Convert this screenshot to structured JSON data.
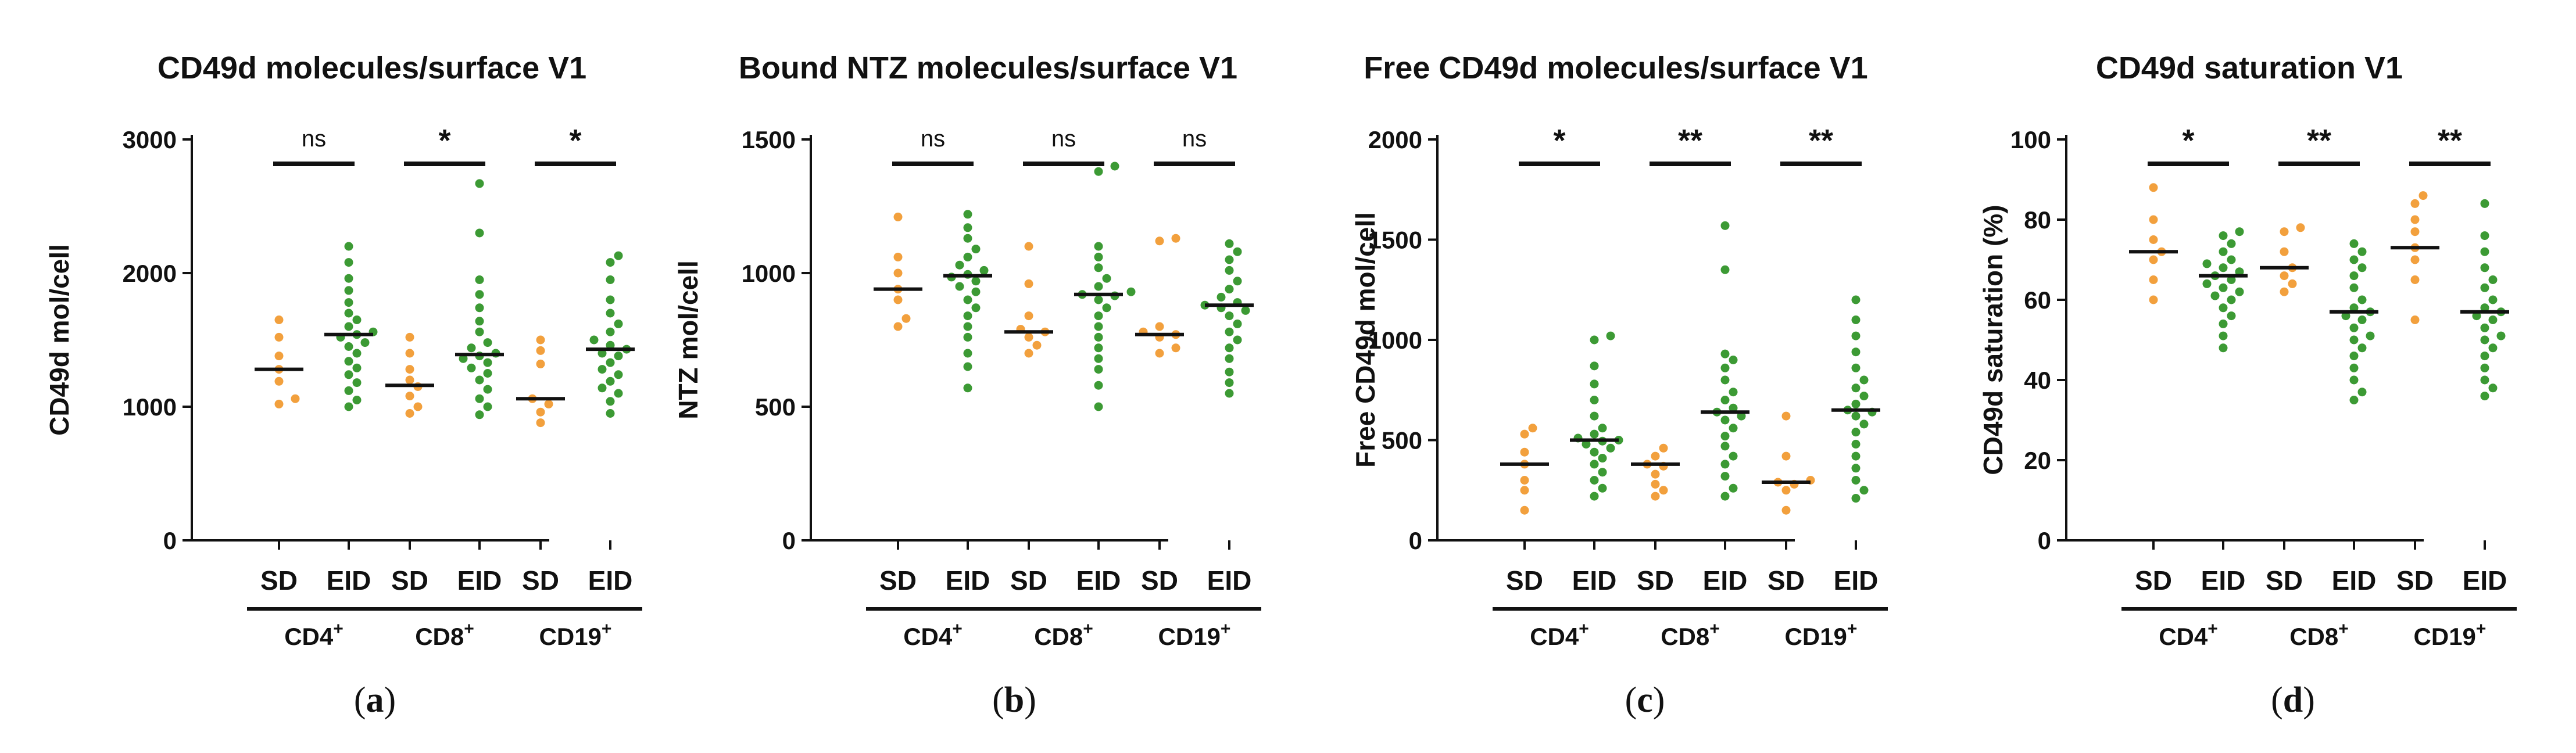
{
  "colors": {
    "SD": "#f2a03d",
    "EID": "#3c9a34",
    "axis": "#111111"
  },
  "chart_data": [
    {
      "type": "scatter",
      "panel": "a",
      "title": "CD49d molecules/surface V1",
      "ylabel": "CD49d mol/cell",
      "ylim": [
        0,
        3000
      ],
      "yticks": [
        0,
        1000,
        2000,
        3000
      ],
      "groups": [
        "CD4+",
        "CD8+",
        "CD19+"
      ],
      "group_labels": [
        {
          "base": "CD4",
          "sup": "+"
        },
        {
          "base": "CD8",
          "sup": "+"
        },
        {
          "base": "CD19",
          "sup": "+"
        }
      ],
      "categories": [
        "SD",
        "EID",
        "SD",
        "EID",
        "SD",
        "EID"
      ],
      "significance": [
        "ns",
        "*",
        "*"
      ],
      "medians": [
        1280,
        1540,
        1160,
        1390,
        1060,
        1430
      ],
      "points": [
        [
          1650,
          1520,
          1380,
          1280,
          1190,
          1060,
          1020
        ],
        [
          2200,
          2080,
          1960,
          1870,
          1780,
          1700,
          1650,
          1600,
          1560,
          1540,
          1520,
          1480,
          1450,
          1400,
          1340,
          1290,
          1240,
          1180,
          1120,
          1050,
          1000
        ],
        [
          1520,
          1400,
          1280,
          1200,
          1150,
          1080,
          1000,
          950
        ],
        [
          2670,
          2300,
          1950,
          1840,
          1740,
          1640,
          1560,
          1480,
          1440,
          1400,
          1380,
          1360,
          1330,
          1290,
          1250,
          1200,
          1130,
          1060,
          1000,
          940
        ],
        [
          1500,
          1420,
          1320,
          1060,
          1020,
          960,
          880
        ],
        [
          2130,
          2080,
          1950,
          1800,
          1700,
          1620,
          1560,
          1500,
          1460,
          1430,
          1400,
          1380,
          1330,
          1280,
          1240,
          1190,
          1140,
          1100,
          1040,
          950
        ]
      ]
    },
    {
      "type": "scatter",
      "panel": "b",
      "title": "Bound NTZ molecules/surface V1",
      "ylabel": "NTZ mol/cell",
      "ylim": [
        0,
        1500
      ],
      "yticks": [
        0,
        500,
        1000,
        1500
      ],
      "groups": [
        "CD4+",
        "CD8+",
        "CD19+"
      ],
      "group_labels": [
        {
          "base": "CD4",
          "sup": "+"
        },
        {
          "base": "CD8",
          "sup": "+"
        },
        {
          "base": "CD19",
          "sup": "+"
        }
      ],
      "categories": [
        "SD",
        "EID",
        "SD",
        "EID",
        "SD",
        "EID"
      ],
      "significance": [
        "ns",
        "ns",
        "ns"
      ],
      "medians": [
        940,
        990,
        780,
        920,
        770,
        880
      ],
      "points": [
        [
          1210,
          1060,
          1000,
          940,
          900,
          830,
          800
        ],
        [
          1220,
          1170,
          1130,
          1090,
          1060,
          1030,
          1010,
          995,
          985,
          970,
          950,
          930,
          900,
          870,
          840,
          800,
          760,
          700,
          650,
          570
        ],
        [
          1100,
          960,
          840,
          790,
          780,
          760,
          730,
          700
        ],
        [
          1400,
          1380,
          1100,
          1060,
          1020,
          980,
          950,
          930,
          920,
          915,
          900,
          870,
          840,
          800,
          760,
          720,
          680,
          640,
          580,
          500
        ],
        [
          1130,
          1120,
          800,
          780,
          770,
          760,
          720,
          700
        ],
        [
          1110,
          1080,
          1050,
          1010,
          970,
          940,
          910,
          890,
          880,
          870,
          860,
          840,
          810,
          780,
          750,
          720,
          680,
          630,
          590,
          550
        ]
      ]
    },
    {
      "type": "scatter",
      "panel": "c",
      "title": "Free CD49d molecules/surface V1",
      "ylabel": "Free CD49d mol/cell",
      "ylim": [
        0,
        2000
      ],
      "yticks": [
        0,
        500,
        1000,
        1500,
        2000
      ],
      "groups": [
        "CD4+",
        "CD8+",
        "CD19+"
      ],
      "group_labels": [
        {
          "base": "CD4",
          "sup": "+"
        },
        {
          "base": "CD8",
          "sup": "+"
        },
        {
          "base": "CD19",
          "sup": "+"
        }
      ],
      "categories": [
        "SD",
        "EID",
        "SD",
        "EID",
        "SD",
        "EID"
      ],
      "significance": [
        "*",
        "**",
        "**"
      ],
      "medians": [
        380,
        500,
        380,
        640,
        290,
        650
      ],
      "points": [
        [
          560,
          530,
          440,
          380,
          300,
          250,
          150
        ],
        [
          1020,
          1000,
          870,
          780,
          700,
          620,
          560,
          530,
          510,
          500,
          495,
          480,
          460,
          440,
          410,
          380,
          340,
          300,
          260,
          220
        ],
        [
          460,
          420,
          380,
          370,
          330,
          280,
          250,
          220
        ],
        [
          1570,
          1350,
          930,
          900,
          860,
          800,
          740,
          700,
          660,
          640,
          620,
          600,
          560,
          520,
          470,
          420,
          380,
          320,
          260,
          220
        ],
        [
          620,
          420,
          300,
          290,
          280,
          250,
          150
        ],
        [
          1200,
          1100,
          1020,
          940,
          860,
          800,
          760,
          720,
          680,
          650,
          640,
          620,
          580,
          540,
          480,
          420,
          360,
          300,
          250,
          210
        ]
      ]
    },
    {
      "type": "scatter",
      "panel": "d",
      "title": "CD49d saturation V1",
      "ylabel": "CD49d saturation (%)",
      "ylim": [
        0,
        100
      ],
      "yticks": [
        0,
        20,
        40,
        60,
        80,
        100
      ],
      "groups": [
        "CD4+",
        "CD8+",
        "CD19+"
      ],
      "group_labels": [
        {
          "base": "CD4",
          "sup": "+"
        },
        {
          "base": "CD8",
          "sup": "+"
        },
        {
          "base": "CD19",
          "sup": "+"
        }
      ],
      "categories": [
        "SD",
        "EID",
        "SD",
        "EID",
        "SD",
        "EID"
      ],
      "significance": [
        "*",
        "**",
        "**"
      ],
      "medians": [
        72,
        66,
        68,
        57,
        73,
        57
      ],
      "points": [
        [
          88,
          80,
          75,
          72,
          70,
          65,
          60
        ],
        [
          77,
          76,
          74,
          72,
          70,
          69,
          68,
          67,
          66,
          65,
          64,
          63,
          62,
          61,
          60,
          58,
          56,
          54,
          51,
          48
        ],
        [
          78,
          77,
          72,
          68,
          66,
          64,
          62
        ],
        [
          74,
          72,
          70,
          68,
          66,
          63,
          60,
          58,
          57,
          56,
          55,
          53,
          51,
          50,
          48,
          46,
          43,
          40,
          37,
          35
        ],
        [
          86,
          84,
          80,
          77,
          73,
          70,
          65,
          55
        ],
        [
          84,
          76,
          72,
          68,
          65,
          63,
          60,
          58,
          57,
          56,
          55,
          53,
          51,
          50,
          48,
          46,
          43,
          40,
          38,
          36
        ]
      ]
    }
  ],
  "panel_labels": [
    "a",
    "b",
    "c",
    "d"
  ]
}
